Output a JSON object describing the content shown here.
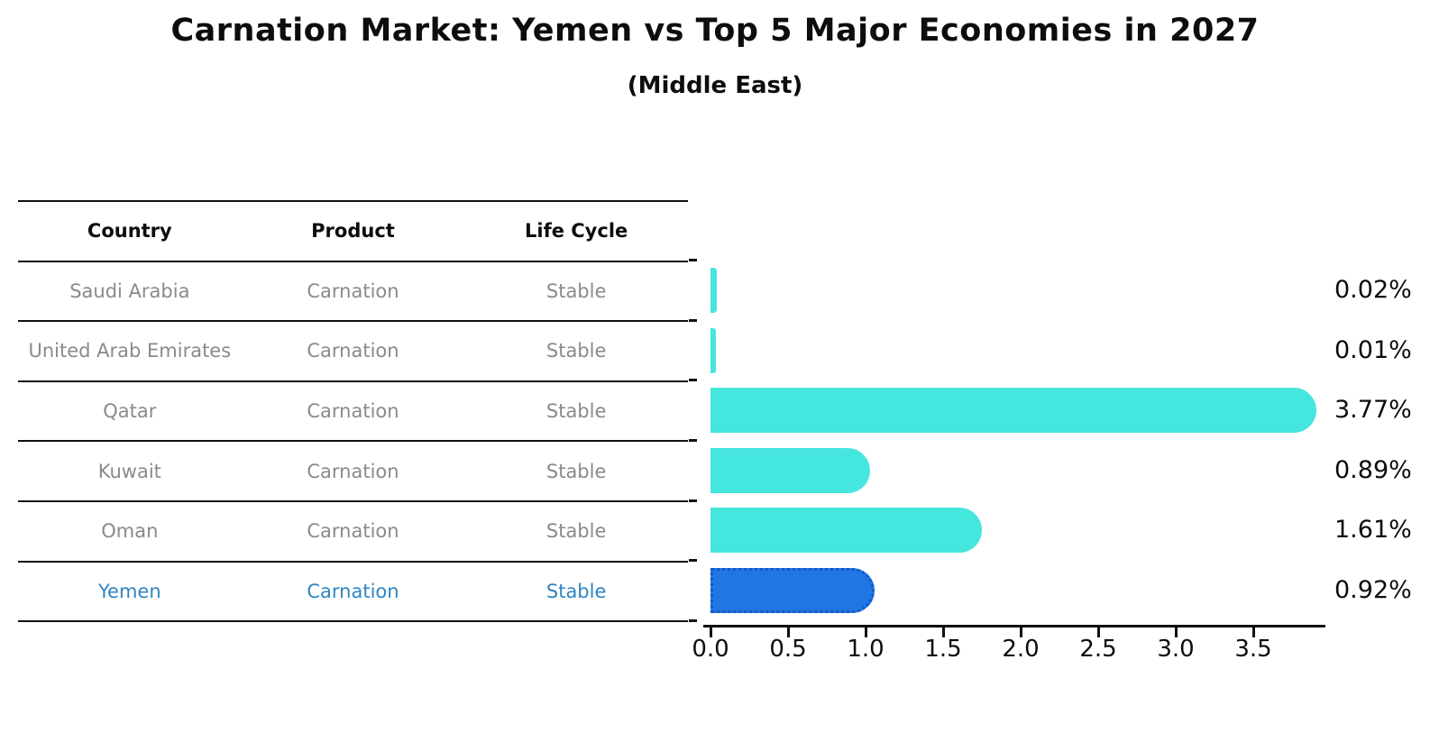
{
  "title": "Carnation Market: Yemen vs Top 5 Major Economies in 2027",
  "subtitle": "(Middle East)",
  "table": {
    "headers": [
      "Country",
      "Product",
      "Life Cycle"
    ],
    "rows": [
      {
        "country": "Saudi Arabia",
        "product": "Carnation",
        "life_cycle": "Stable",
        "highlight": false
      },
      {
        "country": "United Arab Emirates",
        "product": "Carnation",
        "life_cycle": "Stable",
        "highlight": false
      },
      {
        "country": "Qatar",
        "product": "Carnation",
        "life_cycle": "Stable",
        "highlight": false
      },
      {
        "country": "Kuwait",
        "product": "Carnation",
        "life_cycle": "Stable",
        "highlight": false
      },
      {
        "country": "Oman",
        "product": "Carnation",
        "life_cycle": "Stable",
        "highlight": false
      },
      {
        "country": "Yemen",
        "product": "Carnation",
        "life_cycle": "Stable",
        "highlight": true
      }
    ]
  },
  "chart_data": {
    "type": "bar",
    "orientation": "horizontal",
    "title": "Carnation Market: Yemen vs Top 5 Major Economies in 2027",
    "subtitle": "(Middle East)",
    "categories": [
      "Saudi Arabia",
      "United Arab Emirates",
      "Qatar",
      "Kuwait",
      "Oman",
      "Yemen"
    ],
    "values": [
      0.02,
      0.01,
      3.77,
      0.89,
      1.61,
      0.92
    ],
    "value_labels": [
      "0.02%",
      "0.01%",
      "3.77%",
      "0.89%",
      "1.61%",
      "0.92%"
    ],
    "highlight_category": "Yemen",
    "xlim": [
      0,
      4.0
    ],
    "xtick_labels": [
      "0.0",
      "0.5",
      "1.0",
      "1.5",
      "2.0",
      "2.5",
      "3.0",
      "3.5"
    ],
    "xtick_values": [
      0,
      0.5,
      1.0,
      1.5,
      2.0,
      2.5,
      3.0,
      3.5
    ],
    "grid": false,
    "legend": "none",
    "colors": {
      "bar": "#45E6DE",
      "highlight_bar": "#2077E4",
      "highlight_bar_border": "#1557C5",
      "highlight_text": "#2E86C1",
      "row_text": "#8a8a8a",
      "header_text": "#0d0d0d",
      "axis": "#111111"
    }
  }
}
